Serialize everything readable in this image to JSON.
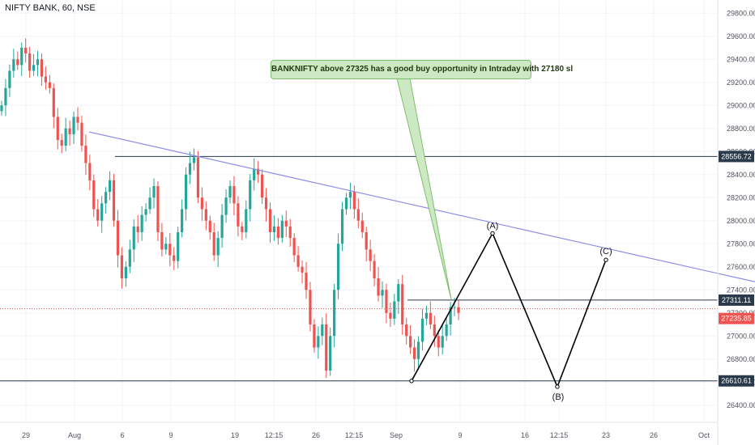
{
  "symbol_label": "NIFTY BANK, 60, NSE",
  "callout_text": "BANKNIFTY above 27325 has a good buy opportunity in Intraday with 27180 sl",
  "chart_data": {
    "type": "candlestick",
    "y_axis": {
      "range": [
        26300,
        29900
      ],
      "ticks": [
        29800,
        29600,
        29400,
        29200,
        29000,
        28800,
        28600,
        28400,
        28200,
        28000,
        27800,
        27600,
        27400,
        27200,
        27000,
        26800,
        26600,
        26400
      ]
    },
    "x_ticks": [
      "29",
      "Aug",
      "6",
      "9",
      "19",
      "12:15",
      "26",
      "12:15",
      "Sep",
      "9",
      "16",
      "12:15",
      "23",
      "26",
      "Oct"
    ],
    "price_tags": [
      {
        "value": "28556.72",
        "color": "#2a3a4a"
      },
      {
        "value": "27311.11",
        "color": "#2a3a4a"
      },
      {
        "value": "27235.85",
        "color": "#ef5350"
      },
      {
        "value": "26610.61",
        "color": "#2a3a4a"
      }
    ],
    "wave_labels": [
      "(A)",
      "(B)",
      "(C)"
    ],
    "wave_points": [
      {
        "bar": 508,
        "price": 26610
      },
      {
        "bar": 608,
        "price": 27890
      },
      {
        "bar": 688,
        "price": 26560
      },
      {
        "bar": 748,
        "price": 27660
      }
    ],
    "trendline": {
      "start": [
        110,
        28770
      ],
      "end": [
        932,
        27470
      ]
    },
    "levels": [
      28556.72,
      27311.11,
      27235.85,
      26610.61
    ],
    "candle_closes": [
      29000,
      29150,
      29300,
      29400,
      29350,
      29500,
      29450,
      29300,
      29350,
      29400,
      29250,
      29200,
      29150,
      28900,
      28700,
      28650,
      28800,
      28750,
      28900,
      28850,
      28650,
      28500,
      28350,
      28100,
      28000,
      28150,
      28250,
      28350,
      28000,
      27700,
      27500,
      27600,
      27750,
      27950,
      27900,
      28050,
      28100,
      28200,
      28300,
      27900,
      27750,
      27800,
      27700,
      27650,
      27900,
      28100,
      28400,
      28500,
      28550,
      28200,
      28100,
      28000,
      27900,
      27700,
      27850,
      28050,
      28200,
      28300,
      28150,
      27950,
      27900,
      28100,
      28350,
      28450,
      28400,
      28200,
      28100,
      27900,
      27950,
      27850,
      28000,
      27950,
      27850,
      27700,
      27600,
      27550,
      27400,
      27100,
      26900,
      27000,
      27100,
      26700,
      27000,
      27400,
      27800,
      28100,
      28200,
      28250,
      28100,
      28000,
      27900,
      27750,
      27650,
      27500,
      27350,
      27400,
      27200,
      27150,
      27300,
      27450,
      27100,
      27000,
      26900,
      26800,
      26950,
      27150,
      27200,
      27100,
      27000,
      26900,
      27000,
      27100,
      27250,
      27250,
      27200
    ]
  }
}
